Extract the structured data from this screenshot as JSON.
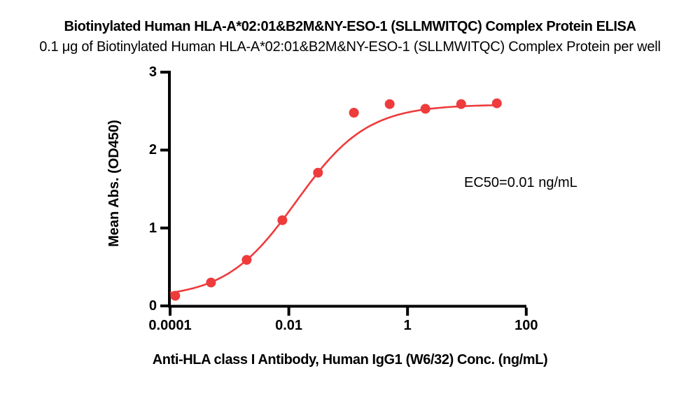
{
  "figure": {
    "title": "Biotinylated Human HLA-A*02:01&B2M&NY-ESO-1 (SLLMWITQC) Complex Protein ELISA",
    "subtitle": "0.1 μg of Biotinylated Human HLA-A*02:01&B2M&NY-ESO-1 (SLLMWITQC) Complex Protein per well"
  },
  "chart_data": {
    "type": "scatter",
    "x_scale": "log10",
    "x": [
      0.000122,
      0.000488,
      0.00195,
      0.0078,
      0.031,
      0.125,
      0.5,
      2,
      8,
      32
    ],
    "y": [
      0.13,
      0.3,
      0.59,
      1.1,
      1.71,
      2.48,
      2.59,
      2.53,
      2.59,
      2.6
    ],
    "series_name": "Anti-HLA class I Antibody, Human IgG1 (W6/32)",
    "title": "Biotinylated Human HLA-A*02:01&B2M&NY-ESO-1 (SLLMWITQC) Complex Protein ELISA",
    "xlabel": "Anti-HLA class I Antibody, Human IgG1 (W6/32) Conc. (ng/mL)",
    "ylabel": "Mean Abs. (OD450)",
    "xlim": [
      0.0001,
      100
    ],
    "ylim": [
      0,
      3
    ],
    "xticks": [
      "0.0001",
      "0.01",
      "1",
      "100"
    ],
    "yticks": [
      "0",
      "1",
      "2",
      "3"
    ],
    "grid": "off",
    "legend": "none",
    "ec50_label": "EC50=0.01 ng/mL",
    "fit": {
      "model": "4PL",
      "bottom": 0.1,
      "top": 2.585,
      "ec50": 0.0134,
      "hill": 0.73
    },
    "marker_color": "#EE3B3C",
    "line_color": "#EE3B3C",
    "axis_color": "#000000"
  }
}
